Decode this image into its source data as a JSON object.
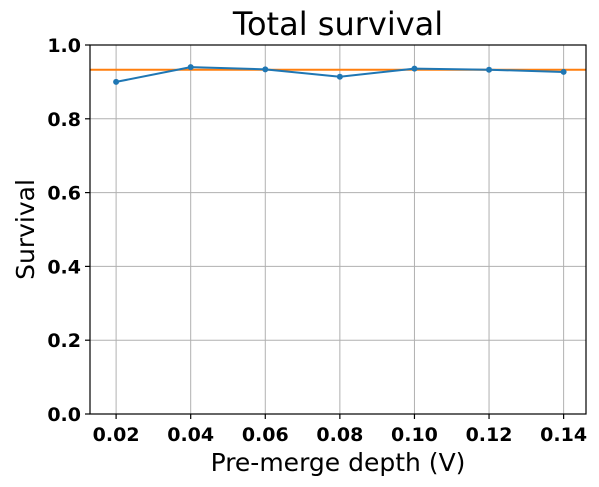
{
  "chart_data": {
    "type": "line",
    "title": "Total survival",
    "xlabel": "Pre-merge depth (V)",
    "ylabel": "Survival",
    "xlim": [
      0.013,
      0.146
    ],
    "ylim": [
      0.0,
      1.0
    ],
    "xticks": [
      0.02,
      0.04,
      0.06,
      0.08,
      0.1,
      0.12,
      0.14
    ],
    "xtick_labels": [
      "0.02",
      "0.04",
      "0.06",
      "0.08",
      "0.10",
      "0.12",
      "0.14"
    ],
    "yticks": [
      0.0,
      0.2,
      0.4,
      0.6,
      0.8,
      1.0
    ],
    "ytick_labels": [
      "0.0",
      "0.2",
      "0.4",
      "0.6",
      "0.8",
      "1.0"
    ],
    "grid": true,
    "series": [
      {
        "color": "#1f77b4",
        "marker": "dot",
        "x": [
          0.02,
          0.04,
          0.06,
          0.08,
          0.1,
          0.12,
          0.14
        ],
        "y": [
          0.9,
          0.94,
          0.934,
          0.914,
          0.936,
          0.933,
          0.927
        ]
      }
    ],
    "reference_lines": [
      {
        "orientation": "horizontal",
        "y": 0.933,
        "color": "#ff7f0e"
      }
    ]
  }
}
